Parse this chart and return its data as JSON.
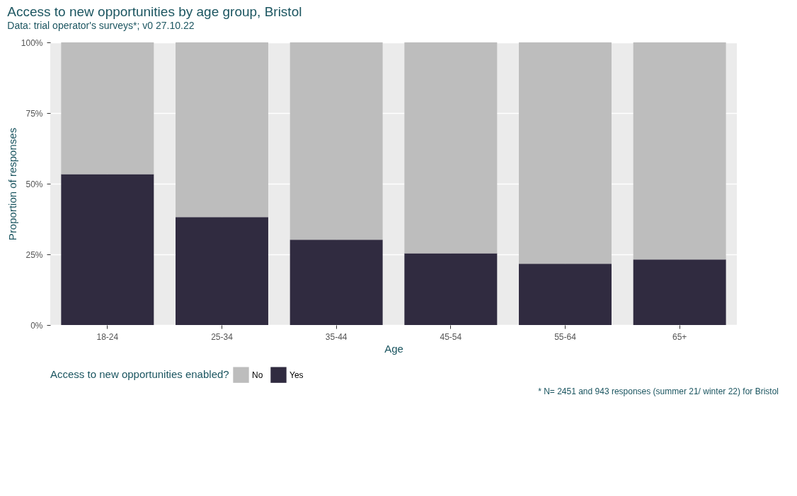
{
  "chart_data": {
    "type": "bar",
    "title": "Access to new opportunities by age group, Bristol",
    "subtitle": "Data: trial operator's surveys*; v0 27.10.22",
    "xlabel": "Age",
    "ylabel": "Proportion of responses",
    "legend_title": "Access to new opportunities enabled?",
    "categories": [
      "18-24",
      "25-34",
      "35-44",
      "45-54",
      "55-64",
      "65+"
    ],
    "series": [
      {
        "name": "Yes",
        "color": "#302b40",
        "values": [
          53.4,
          38.2,
          30.2,
          25.4,
          21.7,
          23.2
        ]
      },
      {
        "name": "No",
        "color": "#bdbdbd",
        "values": [
          46.6,
          61.8,
          69.8,
          74.6,
          78.3,
          76.8
        ]
      }
    ],
    "stacked": true,
    "ylim": [
      0,
      100
    ],
    "yticks": [
      {
        "value": 0,
        "label": "0%"
      },
      {
        "value": 25,
        "label": "25%"
      },
      {
        "value": 50,
        "label": "50%"
      },
      {
        "value": 75,
        "label": "75%"
      },
      {
        "value": 100,
        "label": "100%"
      }
    ],
    "grid": true,
    "legend": "bottom",
    "annotations": [
      "* N= 2451 and 943 responses (summer 21/ winter 22) for Bristol"
    ]
  }
}
